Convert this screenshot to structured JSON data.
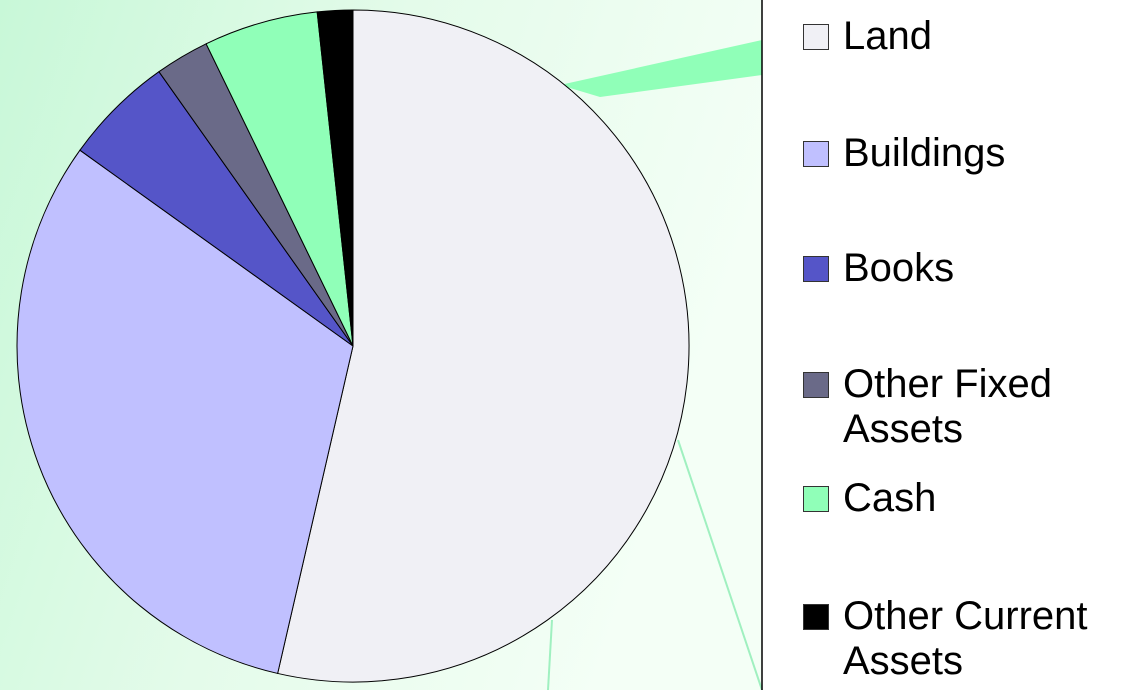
{
  "chart_data": {
    "type": "pie",
    "categories": [
      "Land",
      "Buildings",
      "Books",
      "Other Fixed Assets",
      "Cash",
      "Other Current Assets"
    ],
    "values": [
      53.6,
      31.3,
      5.3,
      2.6,
      5.5,
      1.7
    ],
    "colors": [
      "#f0f0f5",
      "#c0c0ff",
      "#5555c8",
      "#6a6a88",
      "#90ffb8",
      "#000000"
    ],
    "legend": "right"
  }
}
